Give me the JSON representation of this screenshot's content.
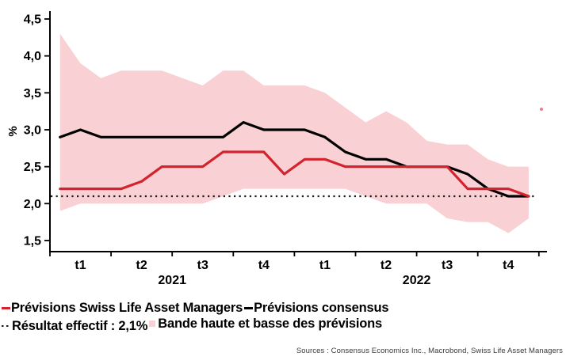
{
  "chart_data": {
    "type": "line",
    "title": "",
    "ylabel": "%",
    "ylim": [
      1.35,
      4.65
    ],
    "yticks": [
      4.5,
      4.0,
      3.5,
      3.0,
      2.5,
      2.0,
      1.5
    ],
    "ytick_labels": [
      "4,5",
      "4,0",
      "3,5",
      "3,0",
      "2,5",
      "2,0",
      "1,5"
    ],
    "quarter_labels": [
      "t1",
      "t2",
      "t3",
      "t4",
      "t1",
      "t2",
      "t3",
      "t4"
    ],
    "year_labels": [
      "2021",
      "2022"
    ],
    "x_months": [
      "2021-01",
      "2021-02",
      "2021-03",
      "2021-04",
      "2021-05",
      "2021-06",
      "2021-07",
      "2021-08",
      "2021-09",
      "2021-10",
      "2021-11",
      "2021-12",
      "2022-01",
      "2022-02",
      "2022-03",
      "2022-04",
      "2022-05",
      "2022-06",
      "2022-07",
      "2022-08",
      "2022-09",
      "2022-10",
      "2022-11",
      "2022-12"
    ],
    "series": [
      {
        "name": "Prévisions Swiss Life Asset Managers",
        "type": "line",
        "color": "#d2232e",
        "values": [
          2.2,
          2.2,
          2.2,
          2.2,
          2.3,
          2.5,
          2.5,
          2.5,
          2.7,
          2.7,
          2.7,
          2.4,
          2.6,
          2.6,
          2.5,
          2.5,
          2.5,
          2.5,
          2.5,
          2.5,
          2.2,
          2.2,
          2.2,
          2.1
        ]
      },
      {
        "name": "Prévisions consensus",
        "type": "line",
        "color": "#000000",
        "values": [
          2.9,
          3.0,
          2.9,
          2.9,
          2.9,
          2.9,
          2.9,
          2.9,
          2.9,
          3.1,
          3.0,
          3.0,
          3.0,
          2.9,
          2.7,
          2.6,
          2.6,
          2.5,
          2.5,
          2.5,
          2.4,
          2.2,
          2.1,
          2.1
        ]
      },
      {
        "name": "Résultat effectif",
        "type": "dotted-constant",
        "color": "#1a1a1a",
        "value": 2.1
      },
      {
        "name": "Bande haute et basse des prévisions",
        "type": "band",
        "color": "#f9d0d3",
        "upper": [
          4.3,
          3.9,
          3.7,
          3.8,
          3.8,
          3.8,
          3.7,
          3.6,
          3.8,
          3.8,
          3.6,
          3.6,
          3.6,
          3.5,
          3.3,
          3.1,
          3.25,
          3.1,
          2.85,
          2.8,
          2.8,
          2.6,
          2.5,
          2.5
        ],
        "lower": [
          1.9,
          2.0,
          2.0,
          2.0,
          2.0,
          2.0,
          2.0,
          2.0,
          2.1,
          2.2,
          2.2,
          2.2,
          2.2,
          2.2,
          2.2,
          2.1,
          2.0,
          2.0,
          2.0,
          1.8,
          1.75,
          1.75,
          1.6,
          1.8
        ]
      }
    ],
    "legend_position": "bottom-left",
    "grid": false
  },
  "legend": {
    "items": [
      {
        "label": "Prévisions Swiss Life Asset Managers",
        "marker": "line",
        "color": "#d2232e"
      },
      {
        "label": "Prévisions consensus",
        "marker": "line",
        "color": "#000000"
      },
      {
        "label": "Résultat effectif : 2,1%",
        "marker": "dots",
        "color": "#1a1a1a"
      },
      {
        "label": "Bande haute et basse des prévisions",
        "marker": "square",
        "color": "#f9d0d3"
      }
    ]
  },
  "footer": {
    "sources": "Sources : Consensus Economics Inc., Macrobond, Swiss Life Asset Managers"
  }
}
